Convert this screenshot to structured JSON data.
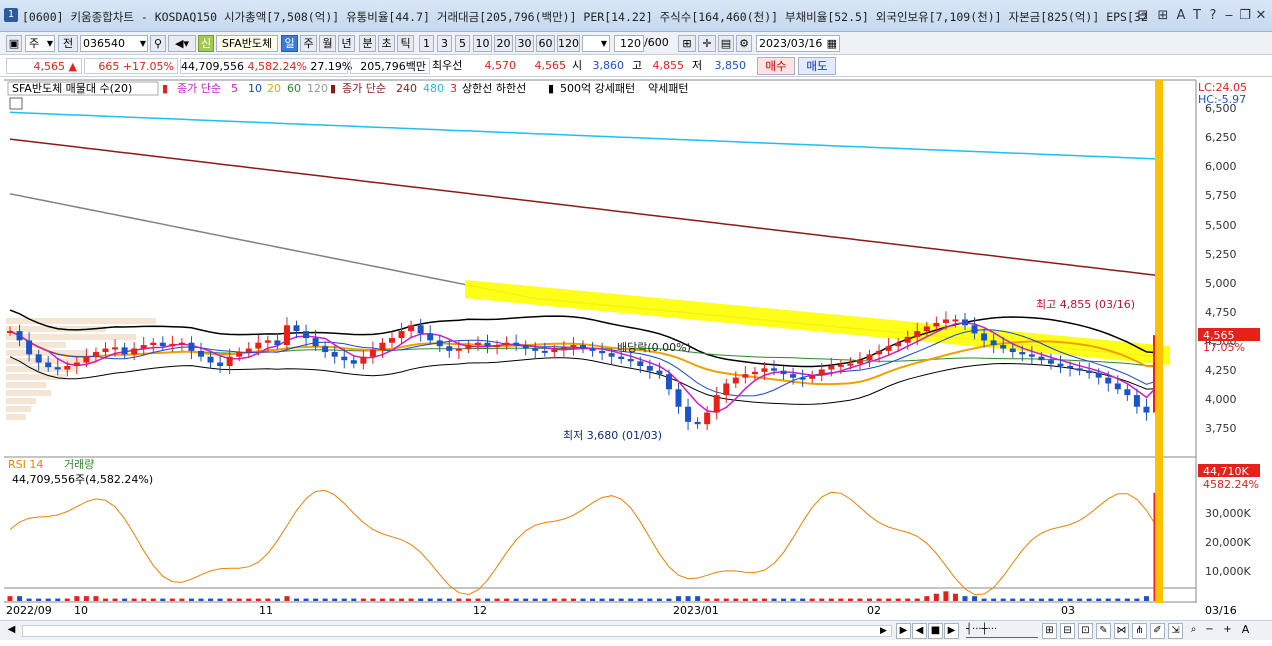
{
  "window": {
    "title": "[0600] 키움종합차트 - KOSDAQ150 시가총액[7,508(억)] 유통비율[44.7] 거래대금[205,796(백만)] PER[14.22] 주식수[164,460(천)] 부채비율[52.5] 외국인보유[7,109(천)] 자본금[825(억)] EPS[32",
    "icon_label": "1",
    "controls": [
      "⊟",
      "⊞",
      "A",
      "T",
      "?",
      "‒",
      "❐",
      "✕"
    ]
  },
  "toolbar": {
    "market_select": "주",
    "prev_label": "전",
    "code": "036540",
    "stock_name": "SFA반도체",
    "period_tabs": [
      "일",
      "주",
      "월",
      "년",
      "분",
      "초",
      "틱"
    ],
    "active_period": "일",
    "interval_buttons": [
      "1",
      "3",
      "5",
      "10",
      "20",
      "30",
      "60",
      "120"
    ],
    "range_value": "120",
    "range_total": "/600",
    "date": "2023/03/16"
  },
  "quote": {
    "price": "4,565",
    "change_arrow": "▲",
    "change": "665",
    "change_pct": "+17.05%",
    "volume": "44,709,556",
    "volume_pct": "4,582.24%",
    "turnover": "27.19%",
    "amount": "205,796백만",
    "best_ask_label": "최우선",
    "best_ask": "4,570",
    "best_bid": "4,565",
    "open_label": "시",
    "open": "3,860",
    "high_label": "고",
    "high": "4,855",
    "low_label": "저",
    "low": "3,850",
    "buy_label": "매수",
    "sell_label": "매도"
  },
  "price_pane": {
    "legend": {
      "name": "SFA반도체 매물대 수(20)",
      "ma_short_label": "종가 단순",
      "ma_short_periods": [
        "5",
        "10",
        "20",
        "60",
        "120"
      ],
      "ma_long_label": "종가 단순",
      "ma_long_periods": [
        "240",
        "480",
        "3"
      ],
      "band_label": "상한선 하한선",
      "pattern_labels": [
        "500억 강세패턴",
        "약세패턴"
      ]
    },
    "axis_ticks": [
      "6,500",
      "6,250",
      "6,000",
      "5,750",
      "5,500",
      "5,250",
      "5,000",
      "4,750",
      "4,500",
      "4,250",
      "4,000",
      "3,750"
    ],
    "lc_label": "LC:24.05",
    "hc_label": "HC:-5.97",
    "current_price_tag": "4,565",
    "current_pct_tag": "17.05%",
    "high_annotation": "최고 4,855 (03/16)",
    "low_annotation": "최저 3,680 (01/03)",
    "dividend_annotation": "배당락(0.00%)"
  },
  "volume_pane": {
    "legend_rsi": "RSI 14",
    "legend_vol": "거래량",
    "value_label": "44,709,556주(4,582.24%)",
    "axis_ticks": [
      "30,000K",
      "20,000K",
      "10,000K"
    ],
    "vol_tag": "44,710K",
    "vol_pct_tag": "4582.24%"
  },
  "x_axis": {
    "labels": [
      "2022/09",
      "10",
      "11",
      "12",
      "2023/01",
      "02",
      "03"
    ],
    "right_label": "03/16"
  },
  "colors": {
    "up": "#e8201a",
    "down": "#1b53c8",
    "ma5": "#d01ad0",
    "ma10": "#1b44d0",
    "ma20": "#f0a000",
    "ma60": "#2a8a2a",
    "ma120": "#808080",
    "ma240": "#8b1a1a",
    "ma480": "#1ec0f0",
    "band": "#000000",
    "highlight": "#ffff00",
    "cursor": "#ffc000"
  },
  "chart_data": {
    "type": "candlestick",
    "title": "SFA반도체",
    "xlabel": "",
    "ylabel": "",
    "ylim": [
      3600,
      6600
    ],
    "x_range": [
      "2022/09",
      "2023/03/16"
    ],
    "series": [
      {
        "name": "종가",
        "values": [
          4600,
          4520,
          4400,
          4330,
          4290,
          4270,
          4300,
          4330,
          4380,
          4420,
          4450,
          4460,
          4400,
          4450,
          4480,
          4500,
          4470,
          4490,
          4500,
          4430,
          4380,
          4330,
          4300,
          4380,
          4420,
          4450,
          4500,
          4520,
          4480,
          4650,
          4600,
          4540,
          4470,
          4420,
          4380,
          4350,
          4320,
          4380,
          4440,
          4500,
          4540,
          4600,
          4650,
          4580,
          4520,
          4470,
          4430,
          4450,
          4480,
          4500,
          4470,
          4480,
          4500,
          4480,
          4450,
          4430,
          4420,
          4440,
          4460,
          4480,
          4450,
          4430,
          4410,
          4380,
          4360,
          4340,
          4300,
          4260,
          4230,
          4100,
          3950,
          3820,
          3800,
          3900,
          4050,
          4150,
          4200,
          4230,
          4250,
          4280,
          4260,
          4230,
          4200,
          4190,
          4220,
          4270,
          4300,
          4310,
          4320,
          4350,
          4400,
          4430,
          4470,
          4500,
          4550,
          4600,
          4640,
          4670,
          4700,
          4700,
          4650,
          4580,
          4520,
          4480,
          4450,
          4420,
          4400,
          4380,
          4350,
          4320,
          4300,
          4280,
          4260,
          4240,
          4200,
          4150,
          4100,
          4050,
          3950,
          3900,
          4565
        ]
      },
      {
        "name": "거래량",
        "values": [
          2,
          2,
          1,
          1,
          1,
          1,
          1,
          2,
          2,
          2,
          1,
          1,
          1,
          1,
          1,
          1,
          1,
          1,
          1,
          1,
          1,
          1,
          1,
          1,
          1,
          1,
          1,
          1,
          1,
          2,
          1,
          1,
          1,
          1,
          1,
          1,
          1,
          1,
          1,
          1,
          1,
          1,
          1,
          1,
          1,
          1,
          1,
          1,
          1,
          1,
          1,
          1,
          1,
          1,
          1,
          1,
          1,
          1,
          1,
          1,
          1,
          1,
          1,
          1,
          1,
          1,
          1,
          1,
          1,
          1,
          2,
          2,
          2,
          1,
          1,
          1,
          1,
          1,
          1,
          1,
          1,
          1,
          1,
          1,
          1,
          1,
          1,
          1,
          1,
          1,
          1,
          1,
          1,
          1,
          1,
          1,
          2,
          3,
          4,
          3,
          2,
          2,
          1,
          1,
          1,
          1,
          1,
          1,
          1,
          1,
          1,
          1,
          1,
          1,
          1,
          1,
          1,
          1,
          1,
          2,
          44.7
        ]
      }
    ],
    "annotations": [
      "최고 4,855 (03/16)",
      "최저 3,680 (01/03)",
      "배당락(0.00%)"
    ]
  }
}
